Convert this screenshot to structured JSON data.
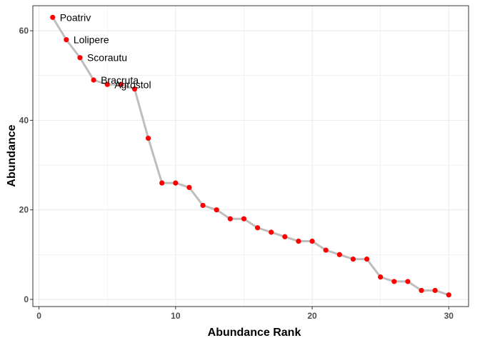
{
  "chart_data": {
    "type": "line",
    "xlabel": "Abundance Rank",
    "ylabel": "Abundance",
    "xlim": [
      -0.45,
      31.45
    ],
    "ylim": [
      -1.6,
      65.6
    ],
    "x_ticks": [
      0,
      10,
      20,
      30
    ],
    "y_ticks": [
      0,
      20,
      40,
      60
    ],
    "x_minor": [
      5,
      15,
      25
    ],
    "y_minor": [
      10,
      30,
      50
    ],
    "grid": true,
    "line_color": "#bebebe",
    "point_color": "#ff0000",
    "series": [
      {
        "x": [
          1,
          2,
          3,
          4,
          5,
          6,
          7,
          8,
          9,
          10,
          11,
          12,
          13,
          14,
          15,
          16,
          17,
          18,
          19,
          20,
          21,
          22,
          23,
          24,
          25,
          26,
          27,
          28,
          29,
          30
        ],
        "values": [
          63,
          58,
          54,
          49,
          48,
          48,
          47,
          36,
          26,
          26,
          25,
          21,
          20,
          18,
          18,
          16,
          15,
          14,
          13,
          13,
          11,
          10,
          9,
          9,
          5,
          4,
          4,
          2,
          2,
          1
        ]
      }
    ],
    "annotations": [
      {
        "x": 1,
        "y": 63,
        "label": "Poatriv"
      },
      {
        "x": 2,
        "y": 58,
        "label": "Lolipere"
      },
      {
        "x": 3,
        "y": 54,
        "label": "Scorautu"
      },
      {
        "x": 4,
        "y": 49,
        "label": "Bracruta"
      },
      {
        "x": 5,
        "y": 48,
        "label": "Agrostol"
      }
    ]
  }
}
